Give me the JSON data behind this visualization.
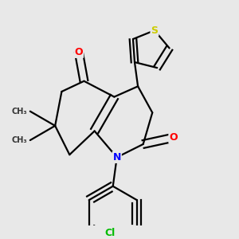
{
  "bg_color": "#e8e8e8",
  "bond_color": "#000000",
  "bond_width": 1.6,
  "atom_colors": {
    "O": "#ff0000",
    "N": "#0000ff",
    "S": "#cccc00",
    "Cl": "#00bb00",
    "C": "#000000"
  }
}
